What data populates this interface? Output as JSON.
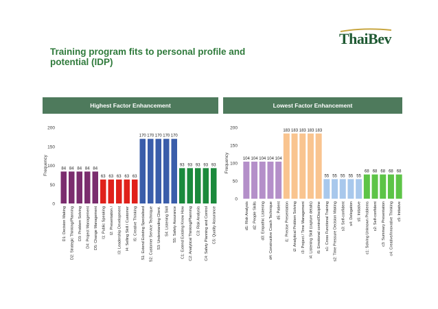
{
  "logo": {
    "text": "ThaiBev"
  },
  "title": "Training program fits to personal profile and potential (IDP)",
  "panels": {
    "left_header": "Highest Factor Enhancement",
    "right_header": "Lowest Factor Enhancement"
  },
  "chart_data": [
    {
      "type": "bar",
      "ylabel": "Frequency",
      "ylim": [
        0,
        200
      ],
      "yticks": [
        0,
        50,
        100,
        150,
        200
      ],
      "grid": false,
      "categories": [
        "D1: Decision Making",
        "D2: Strategic Thinking/Planning",
        "D3: Problem Solving",
        "D4: Project Management",
        "D5: Change Management",
        "I1: Public Speaking",
        "I2: Presentation /",
        "I3: Leadership Development",
        "I4: Selling Skill / Customer",
        "I5: Creative Thinking",
        "S1: Extend Existing Specialised",
        "S2: Customer Service Technique",
        "S3: Understanding Client.",
        "S4: Listening Skill",
        "S5: Safety Assurance",
        "C1: Extend Existing Know How",
        "C2: Analytical Thinking/Planning",
        "C3: Risk Analysis",
        "C4: Safety Planning and Control",
        "C5: Quality Assurance"
      ],
      "values": [
        84,
        84,
        84,
        84,
        84,
        63,
        63,
        63,
        63,
        63,
        170,
        170,
        170,
        170,
        170,
        93,
        93,
        93,
        93,
        93
      ],
      "colors": [
        "#7b2d6e",
        "#7b2d6e",
        "#7b2d6e",
        "#7b2d6e",
        "#7b2d6e",
        "#e0211b",
        "#e0211b",
        "#e0211b",
        "#e0211b",
        "#e0211b",
        "#3a5daa",
        "#3a5daa",
        "#3a5daa",
        "#3a5daa",
        "#3a5daa",
        "#1b8a3c",
        "#1b8a3c",
        "#1b8a3c",
        "#1b8a3c",
        "#1b8a3c"
      ]
    },
    {
      "type": "bar",
      "ylabel": "Frequency",
      "ylim": [
        0,
        200
      ],
      "yticks": [
        0,
        50,
        100,
        150,
        200
      ],
      "grid": false,
      "categories": [
        "d1: Risk Analysis",
        "d2: People Skills",
        "d3: Empathic Listening",
        "d4: Constructive Coach Technique",
        "d5: Patient",
        "i1: Precise Presentation",
        "i2: Analytical Problem Solving",
        "i3: Project / Time Management",
        "i4: Listening Skill (capture details)",
        "i5: Emotional control/Discipline",
        "s1: Cross Functional Training",
        "s2: Time Pressure Decision Making",
        "s3: Self-confident",
        "s4: Delegation",
        "s5: Initiative",
        "c1: Solving Unknown Problems",
        "c2: Self-confident",
        "c3: Summary Presentation",
        "c4: Creative/Innovative Thinking",
        "c5: Initiative"
      ],
      "values": [
        104,
        104,
        104,
        104,
        104,
        183,
        183,
        183,
        183,
        183,
        55,
        55,
        55,
        55,
        55,
        68,
        68,
        68,
        68,
        68
      ],
      "colors": [
        "#b48fc9",
        "#b48fc9",
        "#b48fc9",
        "#b48fc9",
        "#b48fc9",
        "#f9c48f",
        "#f9c48f",
        "#f9c48f",
        "#f9c48f",
        "#f9c48f",
        "#a8c8ec",
        "#a8c8ec",
        "#a8c8ec",
        "#a8c8ec",
        "#a8c8ec",
        "#5dc447",
        "#5dc447",
        "#5dc447",
        "#5dc447",
        "#5dc447"
      ]
    }
  ]
}
